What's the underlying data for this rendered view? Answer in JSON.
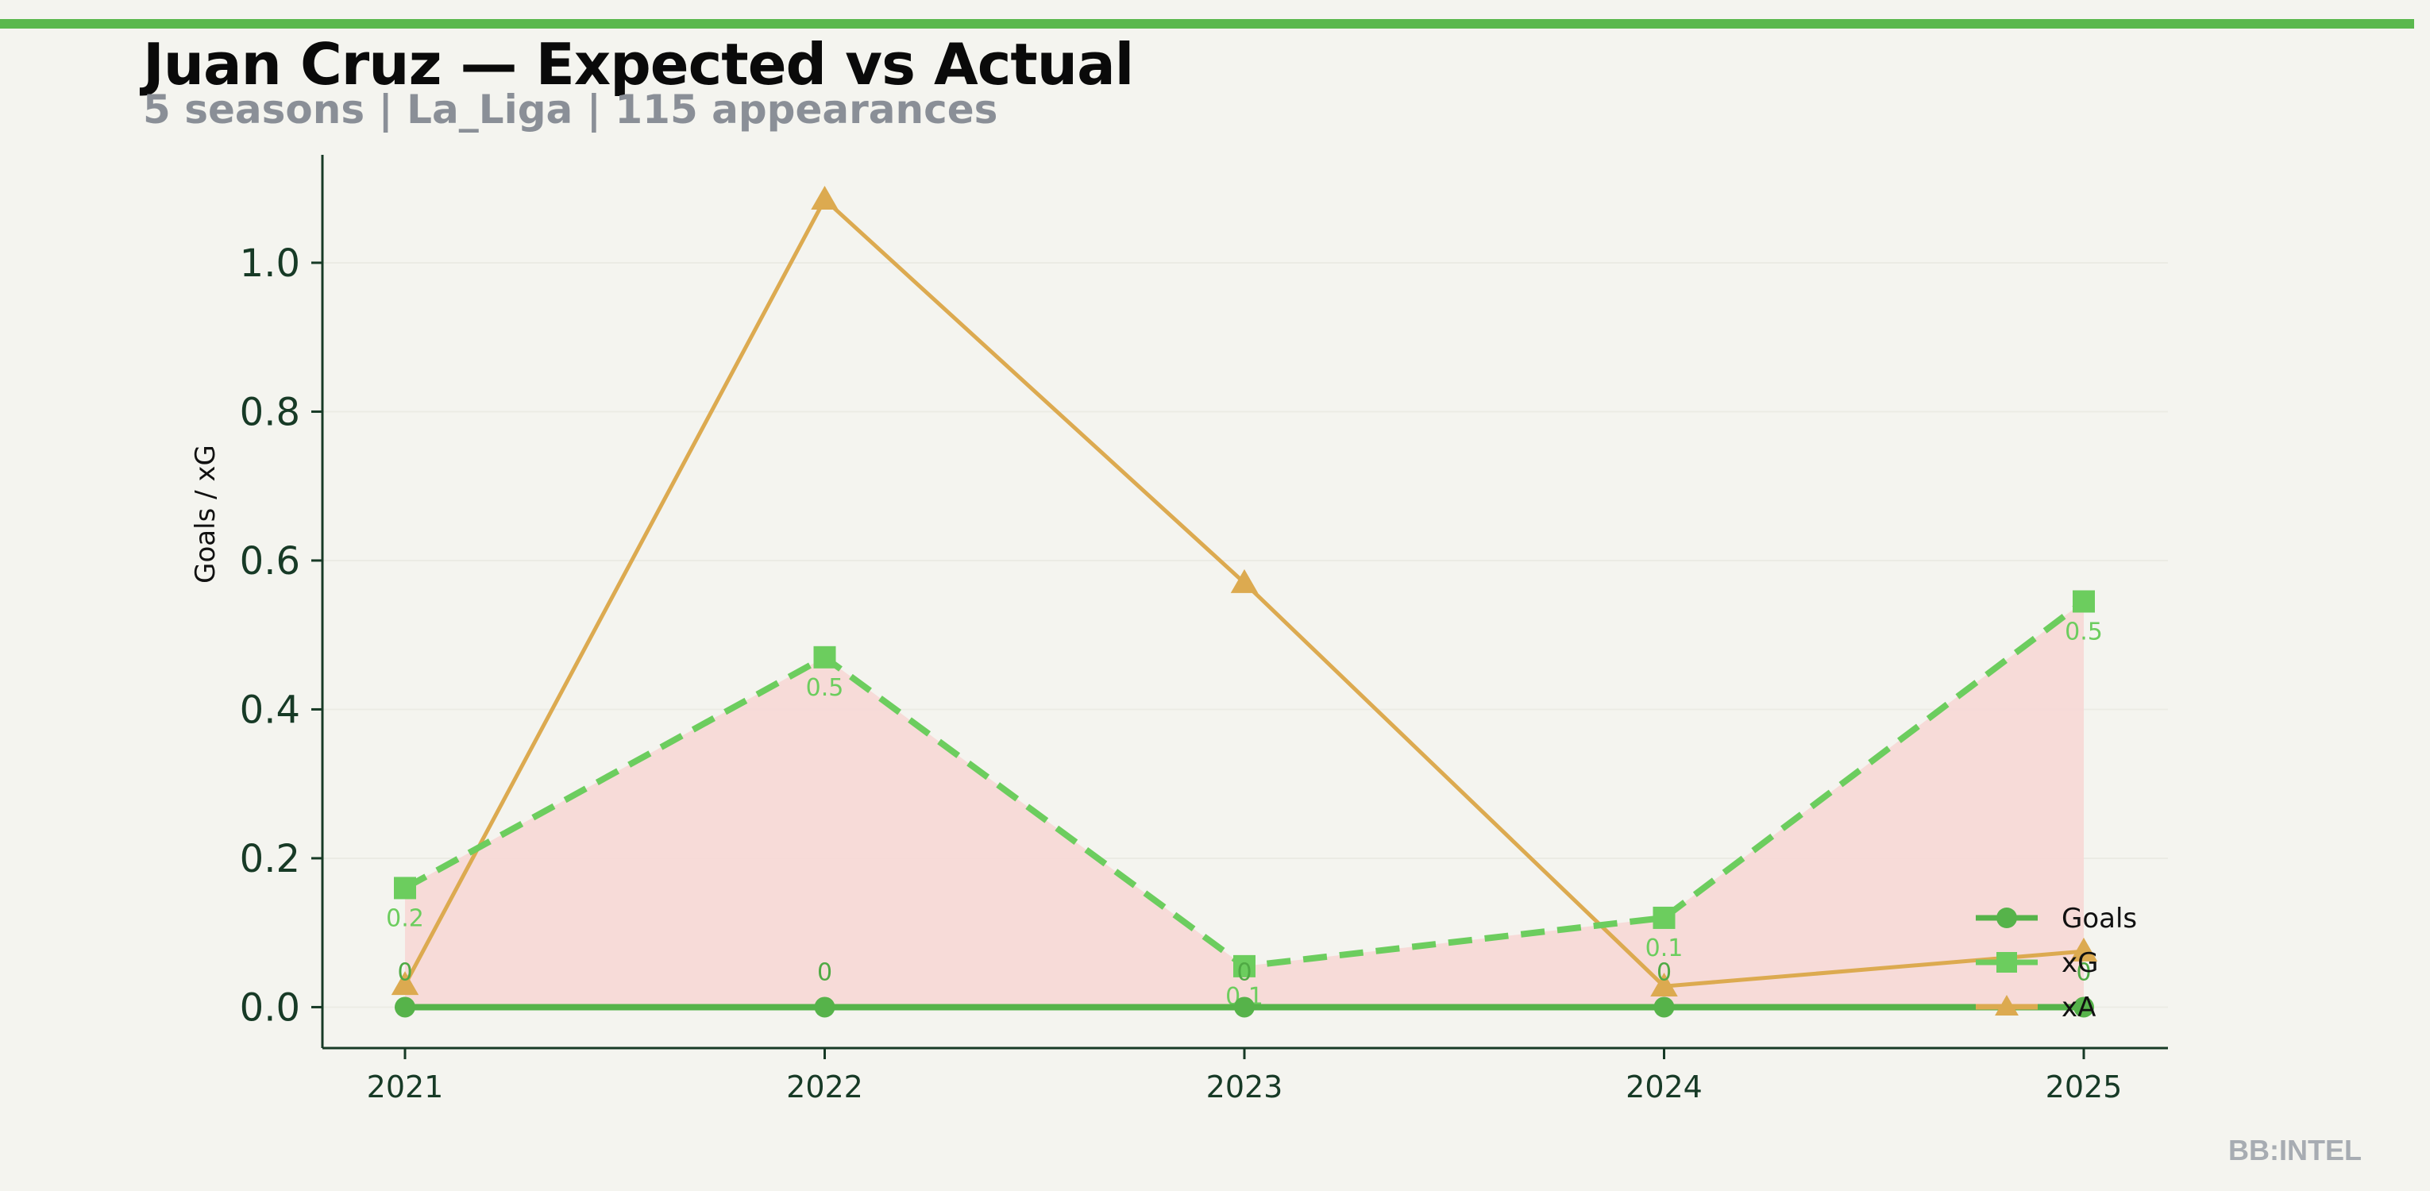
{
  "header": {
    "title": "Juan Cruz — Expected vs Actual",
    "subtitle": "5 seasons | La_Liga | 115 appearances",
    "brand": "BB:INTEL"
  },
  "colors": {
    "accent_bar": "#5ab84d",
    "background": "#f4f4ef",
    "axis": "#173a26",
    "goals": "#56b34a",
    "xg": "#6ccd5e",
    "xa": "#dcaa50",
    "gap_fill": "#f7d9d6",
    "label_goals": "#4faa44",
    "label_xg": "#6ccd5e"
  },
  "chart_data": {
    "type": "line",
    "title": "Juan Cruz — Expected vs Actual",
    "subtitle": "5 seasons | La_Liga | 115 appearances",
    "xlabel": "",
    "ylabel": "Goals / xG",
    "categories": [
      "2021",
      "2022",
      "2023",
      "2024",
      "2025"
    ],
    "ylim": [
      -0.055,
      1.145
    ],
    "yticks": [
      0.0,
      0.2,
      0.4,
      0.6,
      0.8,
      1.0
    ],
    "ytick_labels": [
      "0.0",
      "0.2",
      "0.4",
      "0.6",
      "0.8",
      "1.0"
    ],
    "grid": true,
    "legend_position": "lower-right",
    "series": [
      {
        "name": "Goals",
        "key": "goals",
        "values": [
          0,
          0,
          0,
          0,
          0
        ],
        "data_labels": [
          "0",
          "0",
          "0",
          "0",
          "0"
        ],
        "marker": "circle",
        "line_style": "solid"
      },
      {
        "name": "xG",
        "key": "xg",
        "values": [
          0.16,
          0.47,
          0.055,
          0.12,
          0.545
        ],
        "data_labels": [
          "0.2",
          "0.5",
          "0.1",
          "0.1",
          "0.5"
        ],
        "marker": "square",
        "line_style": "dashed"
      },
      {
        "name": "xA",
        "key": "xa",
        "values": [
          0.03,
          1.085,
          0.57,
          0.028,
          0.075
        ],
        "marker": "triangle",
        "line_style": "solid"
      }
    ],
    "shaded_region": "between Goals and xG"
  }
}
